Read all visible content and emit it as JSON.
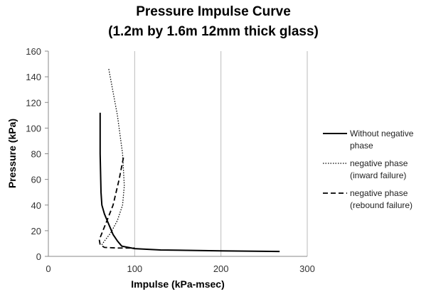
{
  "chart_data": {
    "type": "line",
    "title": "Pressure Impulse Curve",
    "subtitle": "(1.2m by 1.6m 12mm thick glass)",
    "x_label": "Impulse (kPa-msec)",
    "y_label": "Pressure (kPa)",
    "xlim": [
      0,
      300
    ],
    "xticks": [
      0,
      100,
      200,
      300
    ],
    "ylim": [
      0,
      160
    ],
    "yticks": [
      0,
      20,
      40,
      60,
      80,
      100,
      120,
      140,
      160
    ],
    "grid": true,
    "legend": "right",
    "series": [
      {
        "name": "Without negative phase",
        "color": "#000000",
        "dash": "solid",
        "x": [
          60,
          60,
          61,
          62,
          65,
          70,
          75,
          80,
          85,
          100,
          130,
          200,
          268
        ],
        "values": [
          112,
          80,
          50,
          40,
          33,
          25,
          17,
          12,
          8,
          6,
          5,
          4.3,
          3.8
        ]
      },
      {
        "name": "negative phase (inward failure)",
        "color": "#000000",
        "dash": "dotted",
        "x": [
          70,
          80,
          86,
          88,
          86,
          80,
          72,
          65,
          62
        ],
        "values": [
          146,
          110,
          80,
          55,
          40,
          28,
          18,
          12,
          9
        ]
      },
      {
        "name": "negative phase (rebound failure)",
        "color": "#000000",
        "dash": "dashed",
        "x": [
          87,
          82,
          75,
          68,
          62,
          59,
          60,
          65,
          80,
          100
        ],
        "values": [
          77,
          60,
          40,
          28,
          18,
          13,
          9,
          7,
          6.5,
          6.5
        ]
      }
    ]
  }
}
